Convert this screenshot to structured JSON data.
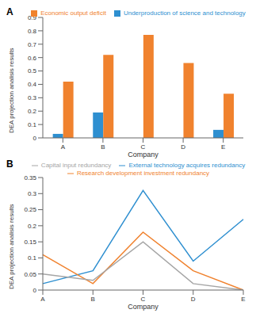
{
  "chart_data": [
    {
      "type": "bar",
      "title": "A",
      "x_label": "Company",
      "y_label": "DEA projection analisis results",
      "categories": [
        "A",
        "B",
        "C",
        "D",
        "E"
      ],
      "series": [
        {
          "name": "Underproduction of science and technology",
          "color": "#2e8fd0",
          "values": [
            0.03,
            0.19,
            0,
            0,
            0.06
          ]
        },
        {
          "name": "Economic output deficit",
          "color": "#f0822e",
          "values": [
            0.42,
            0.62,
            0.77,
            0.56,
            0.33
          ]
        }
      ],
      "ylim": [
        0,
        0.9
      ],
      "yticks": [
        0,
        0.1,
        0.2,
        0.3,
        0.4,
        0.5,
        0.6,
        0.7,
        0.8,
        0.9
      ],
      "legend": "top",
      "grid": false
    },
    {
      "type": "line",
      "title": "B",
      "x_label": "Company",
      "y_label": "DEA projection analisis results",
      "categories": [
        "A",
        "B",
        "C",
        "D",
        "E"
      ],
      "series": [
        {
          "name": "External technology acquires redundancy",
          "color": "#2e8fd0",
          "values": [
            0.02,
            0.06,
            0.31,
            0.09,
            0.22
          ]
        },
        {
          "name": "Research   development investment redundancy",
          "color": "#f0822e",
          "values": [
            0.11,
            0.02,
            0.18,
            0.06,
            0
          ]
        },
        {
          "name": "Capital input redundancy",
          "color": "#a5a5a5",
          "values": [
            0.05,
            0.03,
            0.15,
            0.02,
            0
          ]
        }
      ],
      "ylim": [
        0,
        0.35
      ],
      "yticks": [
        0,
        0.05,
        0.1,
        0.15,
        0.2,
        0.25,
        0.3,
        0.35
      ],
      "legend": "top",
      "grid": false
    }
  ]
}
